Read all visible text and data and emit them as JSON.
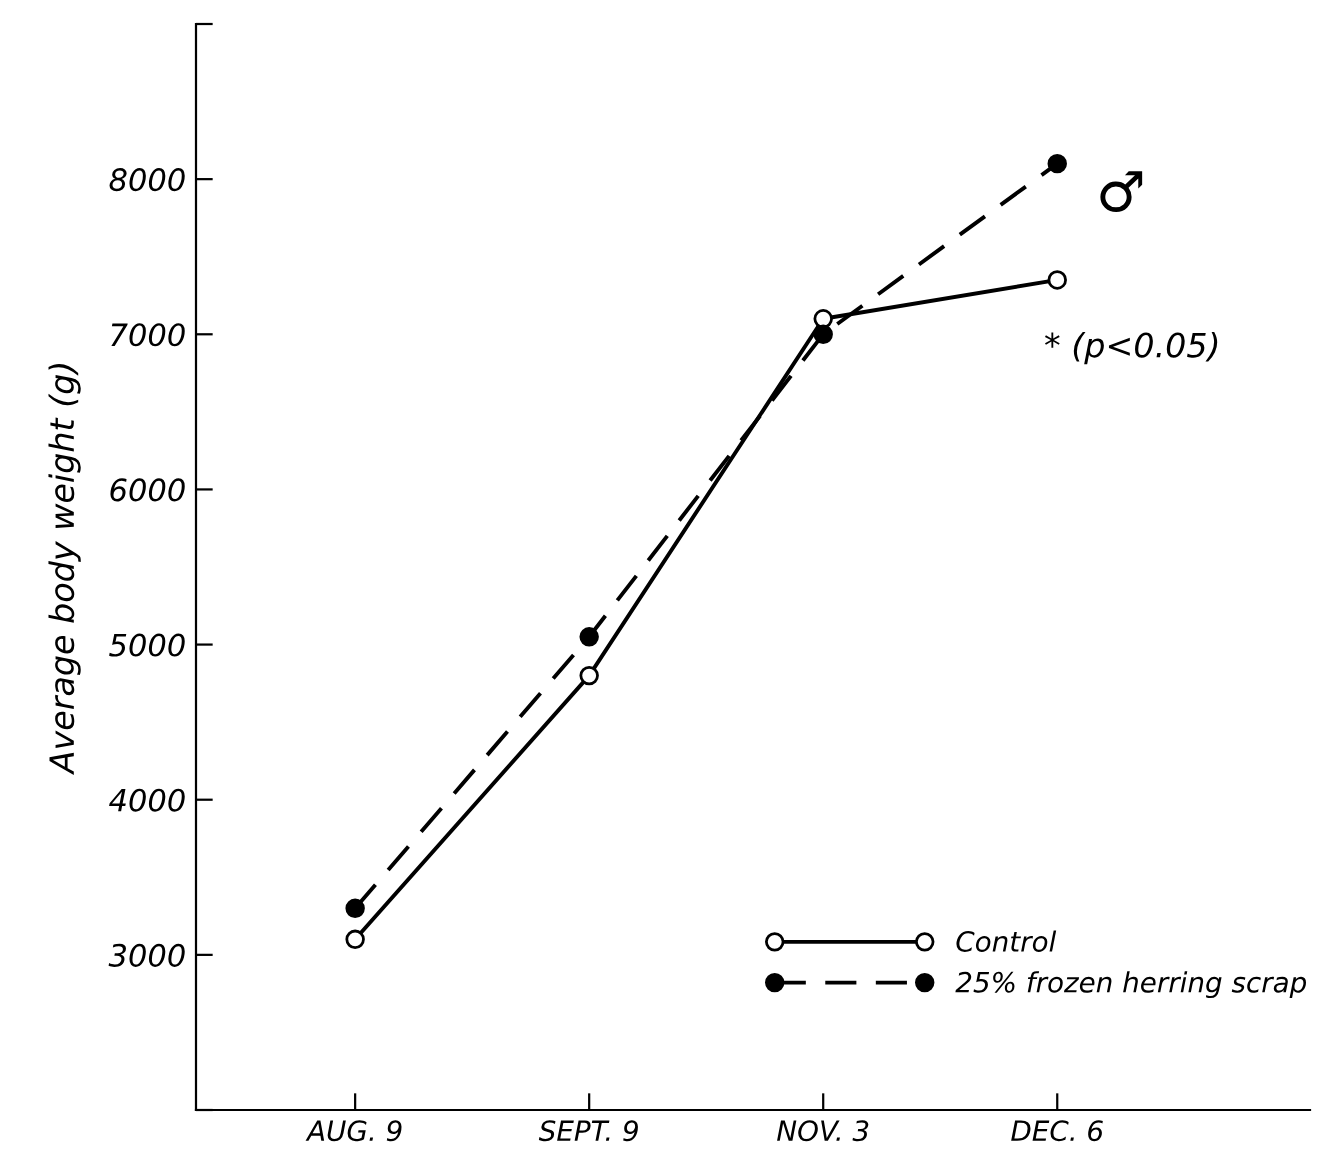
{
  "chart_data": {
    "type": "line",
    "ylabel": "Average body weight (g)",
    "categories": [
      "AUG. 9",
      "SEPT. 9",
      "NOV. 3",
      "DEC. 6"
    ],
    "series": [
      {
        "name": "Control",
        "color": "#000000",
        "values": [
          3100,
          4800,
          7100,
          7350
        ],
        "marker": "circle",
        "line_style": "solid"
      },
      {
        "name": "25% frozen herring scrap",
        "color": "#000000",
        "values": [
          3300,
          5050,
          7000,
          8100
        ],
        "marker": "circle",
        "line_style": "dashed"
      }
    ],
    "ylim": [
      2000,
      9000
    ],
    "yticks": [
      {
        "value": 2000,
        "label": null
      },
      3000,
      4000,
      5000,
      6000,
      7000,
      8000,
      {
        "value": 9000,
        "label": null
      }
    ],
    "grid": false,
    "legend": "bottom right",
    "annotations": [
      "♂",
      "* (p<0.05)"
    ]
  }
}
